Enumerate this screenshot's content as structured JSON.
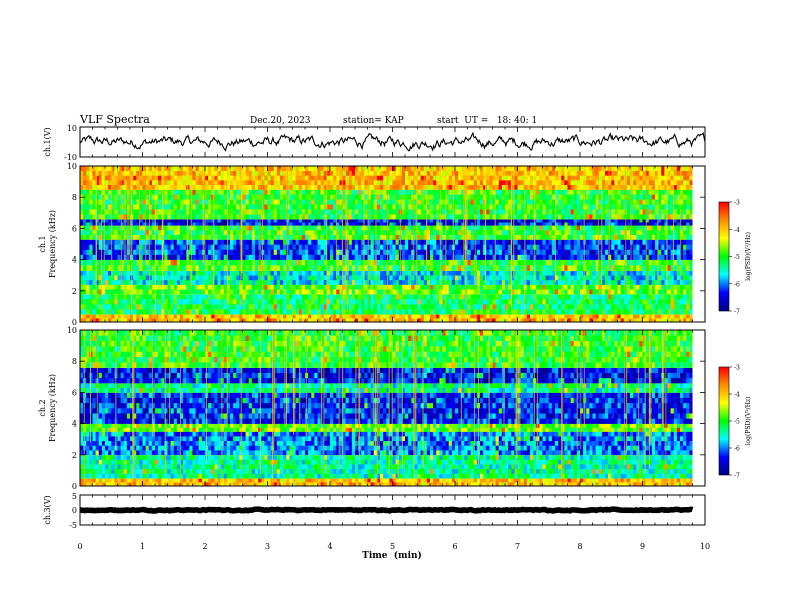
{
  "header": {
    "title": "VLF Spectra",
    "date": "Dec.20, 2023",
    "station": "station= KAP",
    "start_ut": "start  UT =   18: 40: 1"
  },
  "colors": {
    "frame": "#000000",
    "trace": "#000000",
    "background": "#ffffff"
  },
  "colorbar": {
    "label": "log(PSD)(V²/Hz)",
    "ticks": [
      "-3",
      "-4",
      "-5",
      "-6",
      "-7"
    ],
    "stops": [
      "#ff0000",
      "#ff8c00",
      "#ffff00",
      "#00ff00",
      "#00ffff",
      "#0000ff",
      "#000080"
    ]
  },
  "chart_data": [
    {
      "type": "line",
      "name": "ch.1(V)",
      "ylabel": "ch.1(V)",
      "ylim": [
        -10,
        10
      ],
      "ytick_labels": [
        "10",
        "-10"
      ],
      "xlim": [
        0,
        10
      ],
      "trace": {
        "mean": 0.0,
        "amplitude_range": [
          -7.5,
          7.5
        ]
      }
    },
    {
      "type": "heatmap",
      "name": "ch.1 spectrogram",
      "ylabel": "ch.1\nFrequency (kHz)",
      "ylabel_line1": "ch.1",
      "ylabel_line2": "Frequency (kHz)",
      "ylim": [
        0,
        10
      ],
      "ytick_labels": [
        "0",
        "2",
        "4",
        "6",
        "8",
        "10"
      ],
      "xlim": [
        0,
        9.8
      ],
      "value_range": [
        -7,
        -3
      ],
      "bands_khz": [
        {
          "f_low": 0.0,
          "f_high": 0.5,
          "log_psd": -4.0
        },
        {
          "f_low": 0.5,
          "f_high": 1.8,
          "log_psd": -5.2
        },
        {
          "f_low": 1.8,
          "f_high": 2.4,
          "log_psd": -4.8
        },
        {
          "f_low": 2.4,
          "f_high": 3.3,
          "log_psd": -5.6
        },
        {
          "f_low": 3.3,
          "f_high": 4.0,
          "log_psd": -5.0
        },
        {
          "f_low": 4.0,
          "f_high": 5.3,
          "log_psd": -6.2
        },
        {
          "f_low": 5.3,
          "f_high": 6.2,
          "log_psd": -5.0
        },
        {
          "f_low": 6.2,
          "f_high": 6.6,
          "log_psd": -6.4
        },
        {
          "f_low": 6.6,
          "f_high": 8.5,
          "log_psd": -5.0
        },
        {
          "f_low": 8.5,
          "f_high": 10.0,
          "log_psd": -4.0
        }
      ]
    },
    {
      "type": "heatmap",
      "name": "ch.2 spectrogram",
      "ylabel": "ch.2\nFrequency (kHz)",
      "ylabel_line1": "ch.2",
      "ylabel_line2": "Frequency (kHz)",
      "ylim": [
        0,
        10
      ],
      "ytick_labels": [
        "0",
        "2",
        "4",
        "6",
        "8",
        "10"
      ],
      "xlim": [
        0,
        9.8
      ],
      "value_range": [
        -7,
        -3
      ],
      "bands_khz": [
        {
          "f_low": 0.0,
          "f_high": 0.5,
          "log_psd": -4.0
        },
        {
          "f_low": 0.5,
          "f_high": 2.0,
          "log_psd": -5.4
        },
        {
          "f_low": 2.0,
          "f_high": 3.5,
          "log_psd": -6.0
        },
        {
          "f_low": 3.5,
          "f_high": 4.0,
          "log_psd": -4.8
        },
        {
          "f_low": 4.0,
          "f_high": 6.0,
          "log_psd": -6.3
        },
        {
          "f_low": 6.0,
          "f_high": 6.6,
          "log_psd": -5.4
        },
        {
          "f_low": 6.6,
          "f_high": 7.6,
          "log_psd": -6.4
        },
        {
          "f_low": 7.6,
          "f_high": 10.0,
          "log_psd": -5.0
        }
      ]
    },
    {
      "type": "line",
      "name": "ch.3(V)",
      "ylabel": "ch.3(V)",
      "ylim": [
        -5,
        5
      ],
      "ytick_labels": [
        "5",
        "0",
        "-5"
      ],
      "xlim": [
        0,
        10
      ],
      "trace": {
        "mean": 0.0,
        "amplitude_range": [
          -0.4,
          0.4
        ]
      }
    }
  ],
  "xaxis": {
    "label": "Time  (min)",
    "range": [
      0,
      10
    ],
    "tick_labels": [
      "0",
      "1",
      "2",
      "3",
      "4",
      "5",
      "6",
      "7",
      "8",
      "9",
      "10"
    ]
  }
}
